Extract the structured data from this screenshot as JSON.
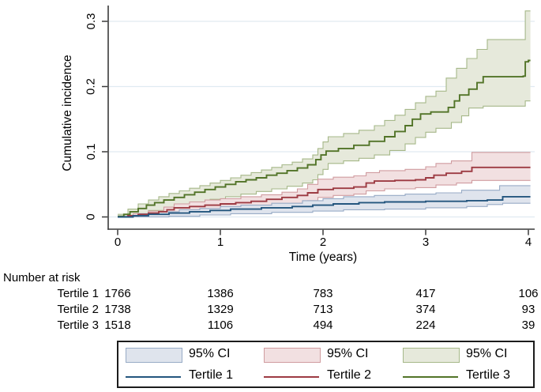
{
  "axes": {
    "x": {
      "label": "Time (years)",
      "ticks": [
        "0",
        "1",
        "2",
        "3",
        "4"
      ]
    },
    "y": {
      "label": "Cumulative incidence",
      "ticks": [
        "0",
        "0.1",
        "0.2",
        "0.3"
      ]
    }
  },
  "risk_table": {
    "title": "Number at risk",
    "rows": [
      {
        "label": "Tertile 1",
        "counts": [
          "1766",
          "1386",
          "783",
          "417",
          "106"
        ]
      },
      {
        "label": "Tertile 2",
        "counts": [
          "1738",
          "1329",
          "713",
          "374",
          "93"
        ]
      },
      {
        "label": "Tertile 3",
        "counts": [
          "1518",
          "1106",
          "494",
          "224",
          "39"
        ]
      }
    ]
  },
  "legend": {
    "entries": [
      {
        "ci_label": "95% CI",
        "line_label": "Tertile 1",
        "line_color": "#24567e",
        "fill_color": "#dfe4ed",
        "edge_color": "#98abc6"
      },
      {
        "ci_label": "95% CI",
        "line_label": "Tertile 2",
        "line_color": "#9d3b43",
        "fill_color": "#f2e0e1",
        "edge_color": "#d09ca0"
      },
      {
        "ci_label": "95% CI",
        "line_label": "Tertile 3",
        "line_color": "#527428",
        "fill_color": "#e6e9db",
        "edge_color": "#a6b889"
      }
    ]
  },
  "chart_data": {
    "type": "line",
    "subtype": "step-cumulative-incidence-with-ci",
    "title": "",
    "xlabel": "Time (years)",
    "ylabel": "Cumulative incidence",
    "xlim": [
      0,
      4.05
    ],
    "ylim": [
      0,
      0.32
    ],
    "x_ticks": [
      0,
      1,
      2,
      3,
      4
    ],
    "y_ticks": [
      0,
      0.1,
      0.2,
      0.3
    ],
    "grid": "horizontal",
    "grid_color": "#e0ebf1",
    "axis_color": "#3a3a3a",
    "legend_position": "bottom",
    "series": [
      {
        "name": "Tertile 1",
        "color": "#24567e",
        "ci_fill": "#dfe4ed",
        "ci_edge": "#98abc6",
        "steps": [
          [
            0,
            0
          ],
          [
            0.15,
            0.002
          ],
          [
            0.3,
            0.004
          ],
          [
            0.5,
            0.006
          ],
          [
            0.7,
            0.008
          ],
          [
            0.9,
            0.01
          ],
          [
            1.1,
            0.012
          ],
          [
            1.4,
            0.014
          ],
          [
            1.7,
            0.016
          ],
          [
            1.9,
            0.018
          ],
          [
            2.1,
            0.02
          ],
          [
            2.35,
            0.022
          ],
          [
            2.6,
            0.023
          ],
          [
            3.0,
            0.024
          ],
          [
            3.4,
            0.025
          ],
          [
            3.6,
            0.026
          ],
          [
            3.75,
            0.031
          ],
          [
            4,
            0.031
          ]
        ],
        "ci_upper": [
          [
            0,
            0.001
          ],
          [
            0.2,
            0.005
          ],
          [
            0.4,
            0.008
          ],
          [
            0.6,
            0.011
          ],
          [
            0.8,
            0.013
          ],
          [
            1.0,
            0.016
          ],
          [
            1.2,
            0.018
          ],
          [
            1.5,
            0.021
          ],
          [
            1.8,
            0.025
          ],
          [
            2.0,
            0.028
          ],
          [
            2.2,
            0.031
          ],
          [
            2.5,
            0.033
          ],
          [
            2.8,
            0.035
          ],
          [
            3.1,
            0.037
          ],
          [
            3.35,
            0.041
          ],
          [
            3.72,
            0.048
          ],
          [
            4,
            0.048
          ]
        ],
        "ci_lower": [
          [
            0,
            0
          ],
          [
            0.5,
            0.001
          ],
          [
            0.8,
            0.003
          ],
          [
            1.1,
            0.005
          ],
          [
            1.5,
            0.007
          ],
          [
            1.9,
            0.009
          ],
          [
            2.2,
            0.011
          ],
          [
            2.6,
            0.012
          ],
          [
            3.0,
            0.014
          ],
          [
            3.4,
            0.016
          ],
          [
            3.6,
            0.019
          ],
          [
            3.75,
            0.021
          ],
          [
            4,
            0.021
          ]
        ]
      },
      {
        "name": "Tertile 2",
        "color": "#9d3b43",
        "ci_fill": "#f2e0e1",
        "ci_edge": "#d09ca0",
        "steps": [
          [
            0,
            0
          ],
          [
            0.1,
            0.002
          ],
          [
            0.2,
            0.004
          ],
          [
            0.3,
            0.006
          ],
          [
            0.4,
            0.008
          ],
          [
            0.48,
            0.011
          ],
          [
            0.55,
            0.014
          ],
          [
            0.7,
            0.016
          ],
          [
            0.85,
            0.018
          ],
          [
            1.0,
            0.02
          ],
          [
            1.15,
            0.022
          ],
          [
            1.3,
            0.024
          ],
          [
            1.45,
            0.027
          ],
          [
            1.6,
            0.03
          ],
          [
            1.75,
            0.033
          ],
          [
            1.85,
            0.037
          ],
          [
            1.95,
            0.042
          ],
          [
            2.1,
            0.044
          ],
          [
            2.3,
            0.046
          ],
          [
            2.42,
            0.052
          ],
          [
            2.5,
            0.055
          ],
          [
            2.7,
            0.056
          ],
          [
            2.9,
            0.057
          ],
          [
            3.0,
            0.06
          ],
          [
            3.08,
            0.064
          ],
          [
            3.2,
            0.067
          ],
          [
            3.35,
            0.07
          ],
          [
            3.45,
            0.076
          ],
          [
            4,
            0.076
          ]
        ],
        "ci_upper": [
          [
            0,
            0.001
          ],
          [
            0.15,
            0.005
          ],
          [
            0.3,
            0.009
          ],
          [
            0.45,
            0.015
          ],
          [
            0.55,
            0.02
          ],
          [
            0.7,
            0.023
          ],
          [
            0.85,
            0.026
          ],
          [
            1.0,
            0.028
          ],
          [
            1.2,
            0.031
          ],
          [
            1.4,
            0.034
          ],
          [
            1.6,
            0.038
          ],
          [
            1.75,
            0.043
          ],
          [
            1.85,
            0.05
          ],
          [
            1.95,
            0.058
          ],
          [
            2.1,
            0.061
          ],
          [
            2.3,
            0.063
          ],
          [
            2.42,
            0.068
          ],
          [
            2.55,
            0.071
          ],
          [
            2.8,
            0.073
          ],
          [
            3.0,
            0.077
          ],
          [
            3.1,
            0.082
          ],
          [
            3.25,
            0.086
          ],
          [
            3.45,
            0.099
          ],
          [
            4,
            0.099
          ]
        ],
        "ci_lower": [
          [
            0,
            0
          ],
          [
            0.3,
            0.002
          ],
          [
            0.5,
            0.006
          ],
          [
            0.7,
            0.009
          ],
          [
            0.9,
            0.011
          ],
          [
            1.1,
            0.013
          ],
          [
            1.3,
            0.016
          ],
          [
            1.5,
            0.018
          ],
          [
            1.7,
            0.021
          ],
          [
            1.85,
            0.025
          ],
          [
            1.95,
            0.03
          ],
          [
            2.1,
            0.033
          ],
          [
            2.3,
            0.035
          ],
          [
            2.42,
            0.04
          ],
          [
            2.6,
            0.043
          ],
          [
            2.9,
            0.045
          ],
          [
            3.1,
            0.049
          ],
          [
            3.3,
            0.052
          ],
          [
            3.45,
            0.056
          ],
          [
            4,
            0.056
          ]
        ]
      },
      {
        "name": "Tertile 3",
        "color": "#527428",
        "ci_fill": "#e6e9db",
        "ci_edge": "#a6b889",
        "steps": [
          [
            0,
            0.001
          ],
          [
            0.06,
            0.004
          ],
          [
            0.12,
            0.008
          ],
          [
            0.2,
            0.013
          ],
          [
            0.28,
            0.018
          ],
          [
            0.36,
            0.022
          ],
          [
            0.45,
            0.026
          ],
          [
            0.55,
            0.03
          ],
          [
            0.65,
            0.034
          ],
          [
            0.75,
            0.038
          ],
          [
            0.85,
            0.042
          ],
          [
            0.95,
            0.046
          ],
          [
            1.05,
            0.05
          ],
          [
            1.15,
            0.054
          ],
          [
            1.25,
            0.057
          ],
          [
            1.35,
            0.06
          ],
          [
            1.45,
            0.064
          ],
          [
            1.55,
            0.067
          ],
          [
            1.65,
            0.071
          ],
          [
            1.75,
            0.075
          ],
          [
            1.85,
            0.08
          ],
          [
            1.93,
            0.088
          ],
          [
            1.98,
            0.095
          ],
          [
            2.03,
            0.101
          ],
          [
            2.15,
            0.105
          ],
          [
            2.3,
            0.11
          ],
          [
            2.45,
            0.116
          ],
          [
            2.6,
            0.123
          ],
          [
            2.7,
            0.131
          ],
          [
            2.8,
            0.14
          ],
          [
            2.87,
            0.15
          ],
          [
            2.95,
            0.158
          ],
          [
            3.05,
            0.161
          ],
          [
            3.22,
            0.168
          ],
          [
            3.28,
            0.178
          ],
          [
            3.33,
            0.187
          ],
          [
            3.42,
            0.196
          ],
          [
            3.5,
            0.206
          ],
          [
            3.56,
            0.215
          ],
          [
            3.95,
            0.216
          ],
          [
            3.97,
            0.238
          ],
          [
            4,
            0.24
          ]
        ],
        "ci_upper": [
          [
            0,
            0.004
          ],
          [
            0.1,
            0.012
          ],
          [
            0.2,
            0.02
          ],
          [
            0.3,
            0.026
          ],
          [
            0.4,
            0.031
          ],
          [
            0.5,
            0.036
          ],
          [
            0.6,
            0.04
          ],
          [
            0.7,
            0.044
          ],
          [
            0.8,
            0.048
          ],
          [
            0.9,
            0.052
          ],
          [
            1.0,
            0.056
          ],
          [
            1.1,
            0.06
          ],
          [
            1.2,
            0.064
          ],
          [
            1.3,
            0.068
          ],
          [
            1.4,
            0.072
          ],
          [
            1.5,
            0.076
          ],
          [
            1.6,
            0.08
          ],
          [
            1.7,
            0.084
          ],
          [
            1.8,
            0.089
          ],
          [
            1.9,
            0.095
          ],
          [
            1.95,
            0.105
          ],
          [
            2.0,
            0.115
          ],
          [
            2.05,
            0.123
          ],
          [
            2.2,
            0.128
          ],
          [
            2.35,
            0.133
          ],
          [
            2.5,
            0.14
          ],
          [
            2.6,
            0.148
          ],
          [
            2.7,
            0.156
          ],
          [
            2.8,
            0.165
          ],
          [
            2.9,
            0.175
          ],
          [
            3.0,
            0.185
          ],
          [
            3.1,
            0.193
          ],
          [
            3.2,
            0.213
          ],
          [
            3.3,
            0.228
          ],
          [
            3.4,
            0.243
          ],
          [
            3.5,
            0.257
          ],
          [
            3.6,
            0.272
          ],
          [
            3.95,
            0.272
          ],
          [
            3.97,
            0.316
          ],
          [
            4,
            0.316
          ]
        ],
        "ci_lower": [
          [
            0,
            0
          ],
          [
            0.15,
            0.004
          ],
          [
            0.3,
            0.01
          ],
          [
            0.45,
            0.015
          ],
          [
            0.6,
            0.019
          ],
          [
            0.75,
            0.023
          ],
          [
            0.9,
            0.027
          ],
          [
            1.05,
            0.031
          ],
          [
            1.2,
            0.035
          ],
          [
            1.35,
            0.039
          ],
          [
            1.5,
            0.043
          ],
          [
            1.65,
            0.047
          ],
          [
            1.8,
            0.052
          ],
          [
            1.9,
            0.057
          ],
          [
            1.95,
            0.065
          ],
          [
            2.0,
            0.073
          ],
          [
            2.05,
            0.082
          ],
          [
            2.2,
            0.086
          ],
          [
            2.35,
            0.09
          ],
          [
            2.5,
            0.095
          ],
          [
            2.65,
            0.102
          ],
          [
            2.8,
            0.112
          ],
          [
            2.9,
            0.122
          ],
          [
            3.0,
            0.13
          ],
          [
            3.1,
            0.136
          ],
          [
            3.25,
            0.145
          ],
          [
            3.35,
            0.155
          ],
          [
            3.42,
            0.167
          ],
          [
            3.56,
            0.17
          ],
          [
            3.95,
            0.17
          ],
          [
            3.97,
            0.178
          ],
          [
            4,
            0.178
          ]
        ]
      }
    ],
    "number_at_risk": {
      "times": [
        0,
        1,
        2,
        3,
        4
      ],
      "Tertile 1": [
        1766,
        1386,
        783,
        417,
        106
      ],
      "Tertile 2": [
        1738,
        1329,
        713,
        374,
        93
      ],
      "Tertile 3": [
        1518,
        1106,
        494,
        224,
        39
      ]
    }
  }
}
